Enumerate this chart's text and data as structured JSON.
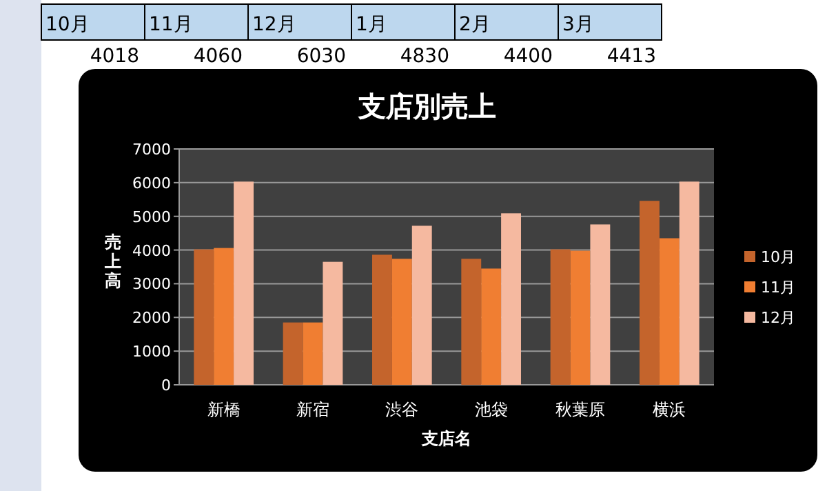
{
  "chart_data": {
    "type": "bar",
    "title": "支店別売上",
    "xlabel": "支店名",
    "ylabel": "売上高",
    "categories": [
      "新橋",
      "新宿",
      "渋谷",
      "池袋",
      "秋葉原",
      "横浜"
    ],
    "series": [
      {
        "name": "10月",
        "color": "#c4642c",
        "values": [
          4020,
          1850,
          3860,
          3740,
          4020,
          5460
        ]
      },
      {
        "name": "11月",
        "color": "#f07e32",
        "values": [
          4060,
          1850,
          3740,
          3450,
          3980,
          4350
        ]
      },
      {
        "name": "12月",
        "color": "#f5b9a0",
        "values": [
          6030,
          3650,
          4720,
          5090,
          4760,
          6030
        ]
      }
    ],
    "ylim": [
      0,
      7000
    ],
    "yticks": [
      0,
      1000,
      2000,
      3000,
      4000,
      5000,
      6000,
      7000
    ],
    "grid": "y",
    "legend": "right",
    "annotations": [
      "10月",
      "11月",
      "12月",
      "1月",
      "2月",
      "3月",
      "4018",
      "4060",
      "6030",
      "4830",
      "4400",
      "4413"
    ]
  }
}
